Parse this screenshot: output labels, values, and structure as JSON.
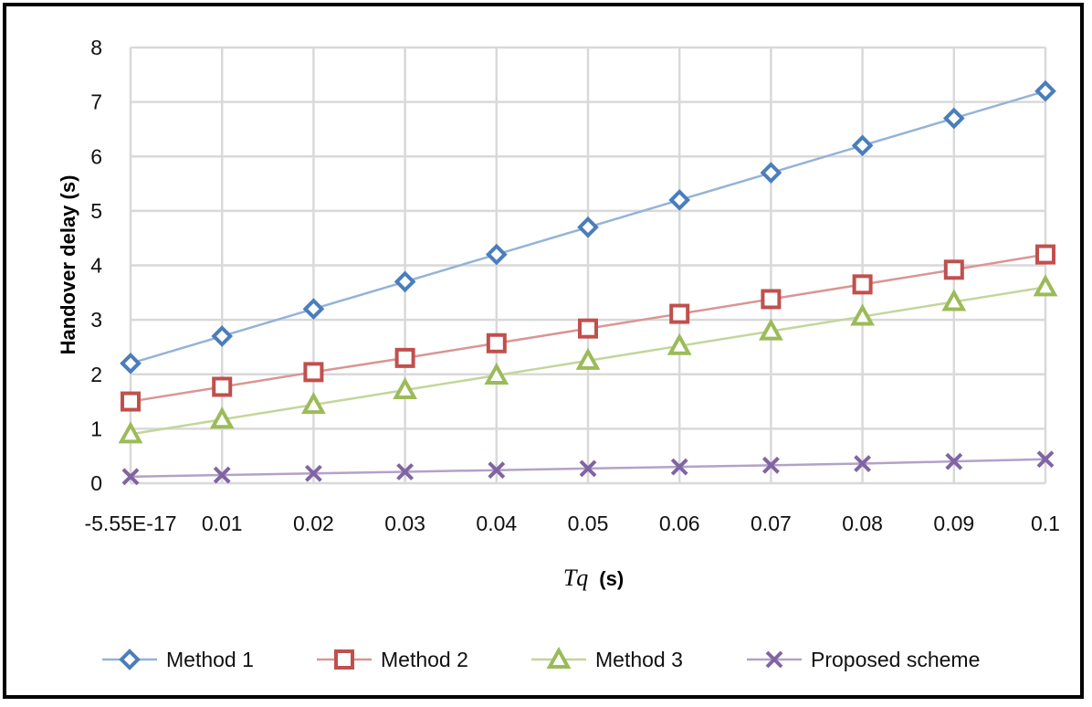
{
  "chart_data": {
    "type": "line",
    "title": "",
    "xlabel_var": "Tq",
    "xlabel_unit": "(s)",
    "ylabel": "Handover delay (s)",
    "x": [
      -5.55e-17,
      0.01,
      0.02,
      0.03,
      0.04,
      0.05,
      0.06,
      0.07,
      0.08,
      0.09,
      0.1
    ],
    "x_tick_labels": [
      "-5.55E-17",
      "0.01",
      "0.02",
      "0.03",
      "0.04",
      "0.05",
      "0.06",
      "0.07",
      "0.08",
      "0.09",
      "0.1"
    ],
    "ylim": [
      0,
      8
    ],
    "y_ticks": [
      "0",
      "1",
      "2",
      "3",
      "4",
      "5",
      "6",
      "7",
      "8"
    ],
    "grid": true,
    "legend_position": "bottom",
    "series": [
      {
        "name": "Method 1",
        "marker": "diamond",
        "color": "#4a7ebb",
        "line_color": "#95b3d7",
        "values": [
          2.2,
          2.7,
          3.2,
          3.7,
          4.2,
          4.7,
          5.2,
          5.7,
          6.2,
          6.7,
          7.2
        ]
      },
      {
        "name": "Method 2",
        "marker": "square",
        "color": "#c0504d",
        "line_color": "#d99694",
        "values": [
          1.5,
          1.77,
          2.04,
          2.3,
          2.57,
          2.84,
          3.11,
          3.38,
          3.65,
          3.92,
          4.2
        ]
      },
      {
        "name": "Method 3",
        "marker": "triangle",
        "color": "#9bbb59",
        "line_color": "#c3d69b",
        "values": [
          0.9,
          1.17,
          1.44,
          1.71,
          1.98,
          2.25,
          2.52,
          2.79,
          3.06,
          3.33,
          3.6
        ]
      },
      {
        "name": "Proposed scheme",
        "marker": "x",
        "color": "#8064a2",
        "line_color": "#b3a2c7",
        "values": [
          0.12,
          0.15,
          0.18,
          0.21,
          0.24,
          0.27,
          0.3,
          0.33,
          0.36,
          0.4,
          0.44
        ]
      }
    ]
  }
}
